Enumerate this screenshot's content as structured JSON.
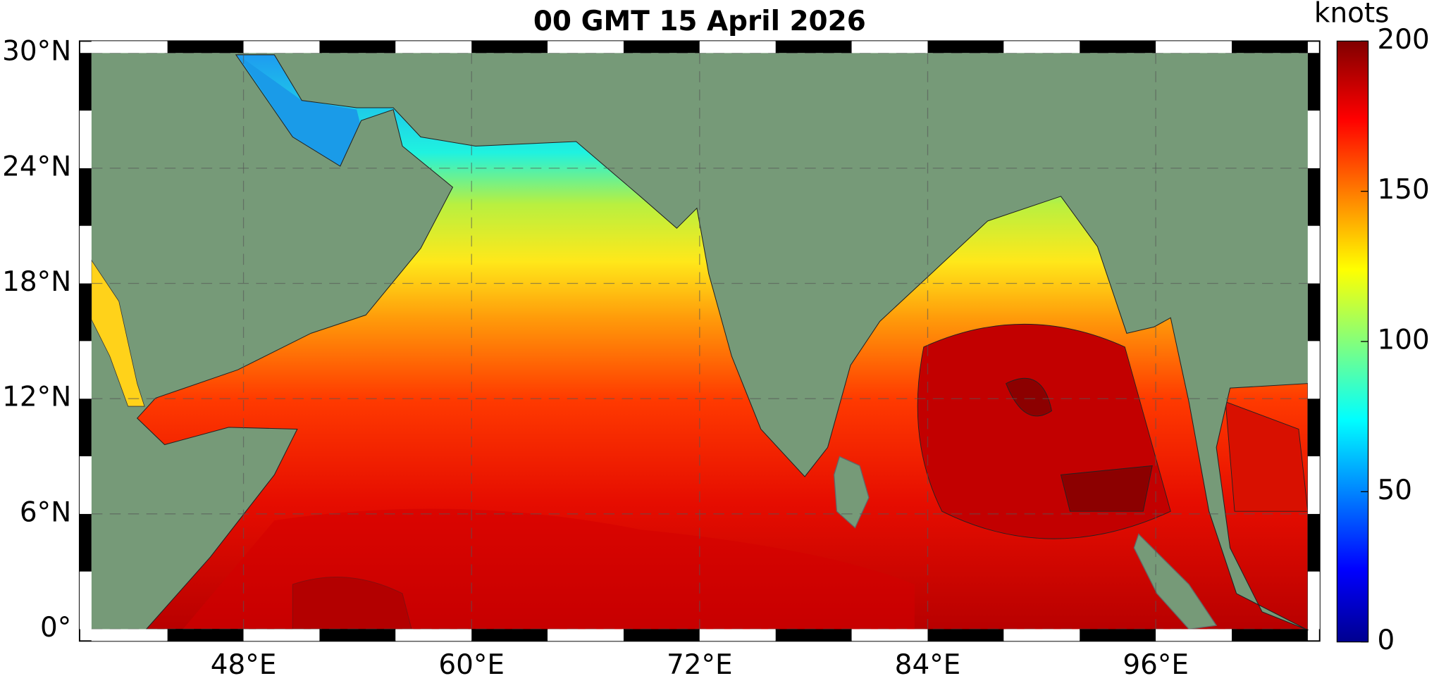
{
  "title": "00 GMT 15 April 2026",
  "map": {
    "lonlim": [
      40,
      104
    ],
    "latlim": [
      0,
      30
    ],
    "lat_ticks": [
      {
        "value": 0,
        "label": "0°"
      },
      {
        "value": 6,
        "label": "6°N"
      },
      {
        "value": 12,
        "label": "12°N"
      },
      {
        "value": 18,
        "label": "18°N"
      },
      {
        "value": 24,
        "label": "24°N"
      },
      {
        "value": 30,
        "label": "30°N"
      }
    ],
    "lon_ticks": [
      {
        "value": 48,
        "label": "48°E"
      },
      {
        "value": 60,
        "label": "60°E"
      },
      {
        "value": 72,
        "label": "72°E"
      },
      {
        "value": 84,
        "label": "84°E"
      },
      {
        "value": 96,
        "label": "96°E"
      }
    ]
  },
  "colorbar": {
    "label": "knots",
    "range": [
      0,
      200
    ],
    "ticks": [
      0,
      50,
      100,
      150,
      200
    ]
  }
}
